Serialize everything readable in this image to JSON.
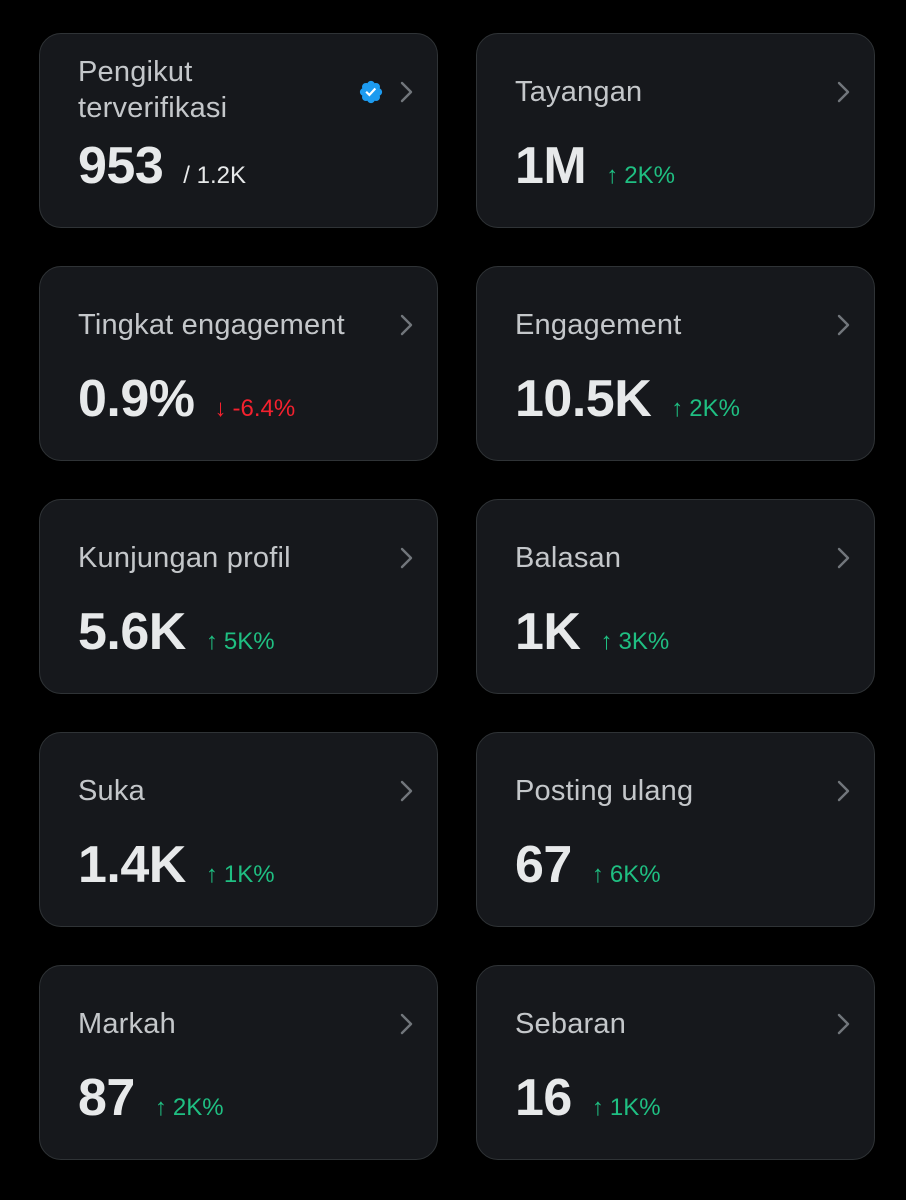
{
  "colors": {
    "background": "#000000",
    "card": "#16181c",
    "card_border": "#2f3336",
    "label": "#c4c7ca",
    "value": "#e7e9ea",
    "positive": "#1fbf82",
    "negative": "#f4212e",
    "verified": "#1d9bf0"
  },
  "cards": [
    {
      "label": "Pengikut terverifikasi",
      "value": "953",
      "sub": "/ 1.2K",
      "icon": "verified-badge-icon"
    },
    {
      "label": "Tayangan",
      "value": "1M",
      "delta": "2K%",
      "direction": "up"
    },
    {
      "label": "Tingkat engagement",
      "value": "0.9%",
      "delta": "-6.4%",
      "direction": "down"
    },
    {
      "label": "Engagement",
      "value": "10.5K",
      "delta": "2K%",
      "direction": "up"
    },
    {
      "label": "Kunjungan profil",
      "value": "5.6K",
      "delta": "5K%",
      "direction": "up"
    },
    {
      "label": "Balasan",
      "value": "1K",
      "delta": "3K%",
      "direction": "up"
    },
    {
      "label": "Suka",
      "value": "1.4K",
      "delta": "1K%",
      "direction": "up"
    },
    {
      "label": "Posting ulang",
      "value": "67",
      "delta": "6K%",
      "direction": "up"
    },
    {
      "label": "Markah",
      "value": "87",
      "delta": "2K%",
      "direction": "up"
    },
    {
      "label": "Sebaran",
      "value": "16",
      "delta": "1K%",
      "direction": "up"
    }
  ]
}
